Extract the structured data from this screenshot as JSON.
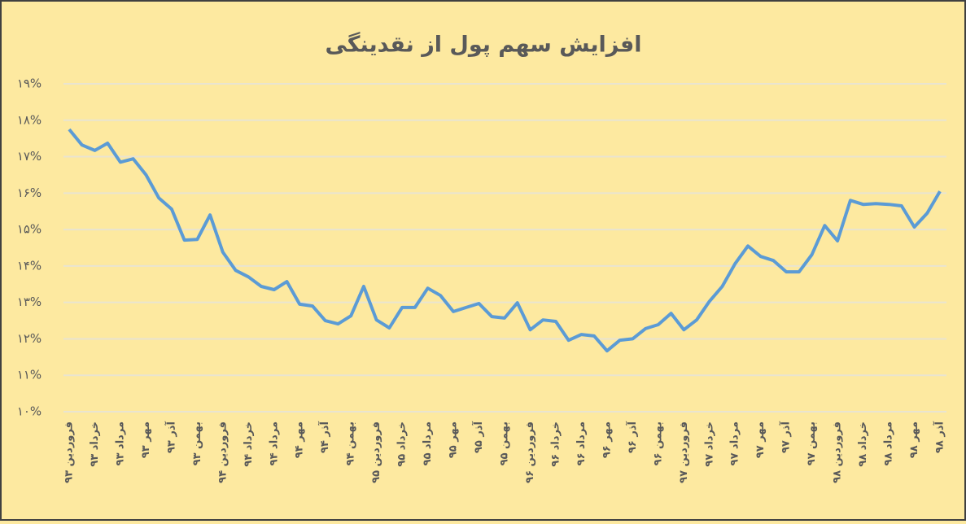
{
  "chart_data": {
    "type": "line",
    "title": "افزایش سهم پول از نقدینگی",
    "categories": [
      "فروردین ۹۳",
      null,
      "خرداد ۹۳",
      null,
      "مرداد ۹۳",
      null,
      "مهر ۹۳",
      null,
      "آذر ۹۳",
      null,
      "بهمن ۹۳",
      null,
      "فروردین ۹۴",
      null,
      "خرداد ۹۴",
      null,
      "مرداد ۹۴",
      null,
      "مهر ۹۴",
      null,
      "آذر ۹۴",
      null,
      "بهمن ۹۴",
      null,
      "فروردین ۹۵",
      null,
      "خرداد ۹۵",
      null,
      "مرداد ۹۵",
      null,
      "مهر ۹۵",
      null,
      "آذر ۹۵",
      null,
      "بهمن ۹۵",
      null,
      "فروردین ۹۶",
      null,
      "خرداد ۹۶",
      null,
      "مرداد ۹۶",
      null,
      "مهر ۹۶",
      null,
      "آذر ۹۶",
      null,
      "بهمن ۹۶",
      null,
      "فروردین ۹۷",
      null,
      "خرداد ۹۷",
      null,
      "مرداد ۹۷",
      null,
      "مهر ۹۷",
      null,
      "آذر ۹۷",
      null,
      "بهمن ۹۷",
      null,
      "فروردین ۹۸",
      null,
      "خرداد ۹۸",
      null,
      "مرداد ۹۸",
      null,
      "مهر ۹۸",
      null,
      "آذر ۹۸"
    ],
    "values": [
      17.75,
      17.32,
      17.17,
      17.37,
      16.85,
      16.94,
      16.5,
      15.87,
      15.56,
      14.71,
      14.73,
      15.4,
      14.38,
      13.88,
      13.7,
      13.44,
      13.35,
      13.57,
      12.95,
      12.9,
      12.5,
      12.41,
      12.63,
      13.44,
      12.52,
      12.3,
      12.86,
      12.86,
      13.39,
      13.19,
      12.75,
      12.86,
      12.97,
      12.61,
      12.57,
      12.99,
      12.25,
      12.52,
      12.48,
      11.96,
      12.12,
      12.08,
      11.67,
      11.96,
      12.0,
      12.28,
      12.39,
      12.7,
      12.25,
      12.52,
      13.03,
      13.44,
      14.06,
      14.55,
      14.26,
      14.15,
      13.84,
      13.84,
      14.31,
      15.11,
      14.69,
      15.8,
      15.69,
      15.71,
      15.69,
      15.65,
      15.07,
      15.45,
      16.05
    ],
    "color": "#5b9bd5",
    "ylim": [
      10,
      19
    ],
    "yticks": [
      {
        "value": 10,
        "label": "۱۰%"
      },
      {
        "value": 11,
        "label": "۱۱%"
      },
      {
        "value": 12,
        "label": "۱۲%"
      },
      {
        "value": 13,
        "label": "۱۳%"
      },
      {
        "value": 14,
        "label": "۱۴%"
      },
      {
        "value": 15,
        "label": "۱۵%"
      },
      {
        "value": 16,
        "label": "۱۶%"
      },
      {
        "value": 17,
        "label": "۱۷%"
      },
      {
        "value": 18,
        "label": "۱۸%"
      },
      {
        "value": 19,
        "label": "۱۹%"
      }
    ],
    "grid": true
  }
}
